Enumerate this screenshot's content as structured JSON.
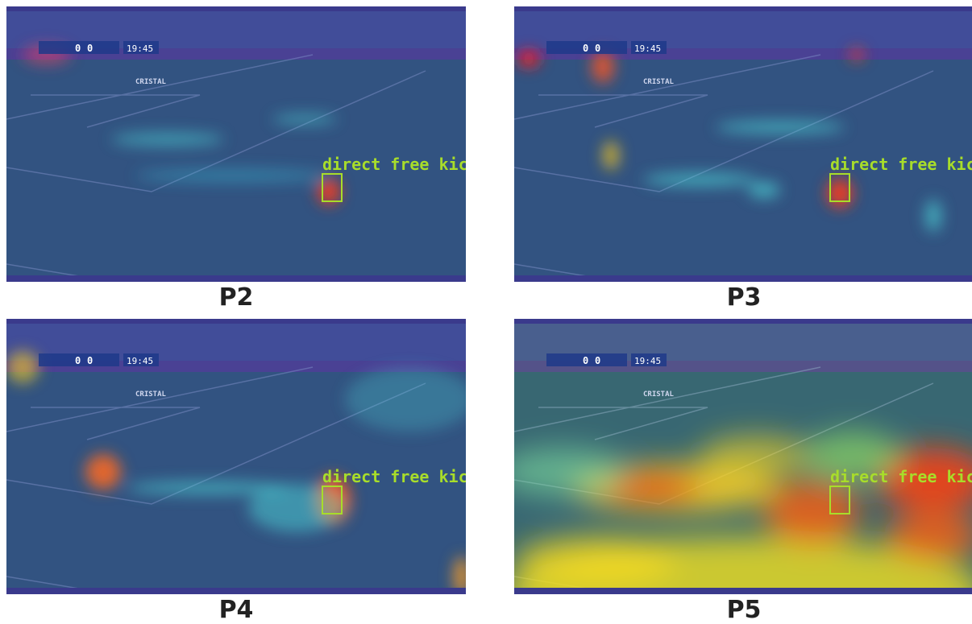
{
  "panels": [
    {
      "label": "P2",
      "annotation": "direct free kick",
      "score_home": "0",
      "score_away": "0",
      "clock": "19:45",
      "sponsor": "CRISTAL"
    },
    {
      "label": "P3",
      "annotation": "direct free kick",
      "score_home": "0",
      "score_away": "0",
      "clock": "19:45",
      "sponsor": "CRISTAL"
    },
    {
      "label": "P4",
      "annotation": "direct free kick",
      "score_home": "0",
      "score_away": "0",
      "clock": "19:45",
      "sponsor": "CRISTAL"
    },
    {
      "label": "P5",
      "annotation": "direct free kick",
      "score_home": "0",
      "score_away": "0",
      "clock": "19:45",
      "sponsor": "CRISTAL"
    }
  ]
}
